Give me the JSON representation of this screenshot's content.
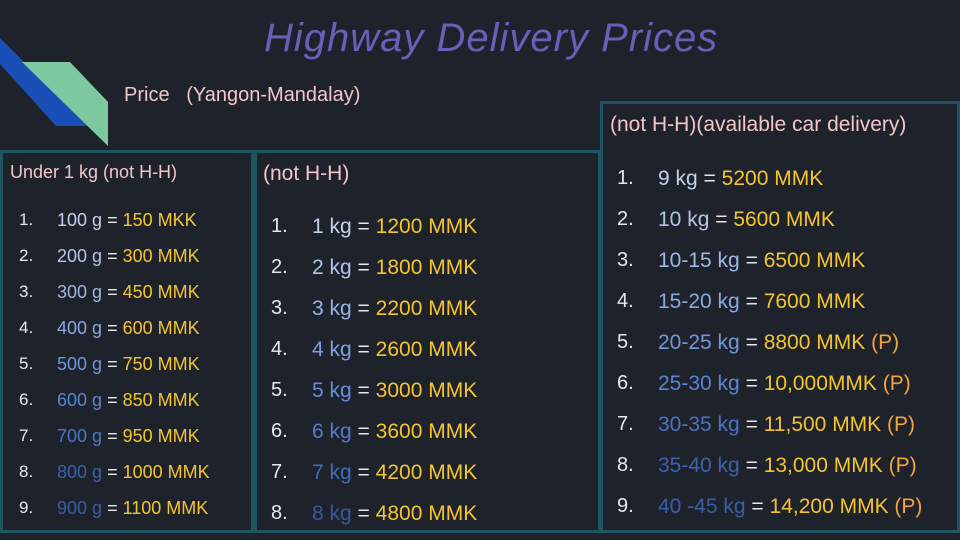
{
  "title": "Highway Delivery Prices",
  "subtitle": "Price   (Yangon-Mandalay)",
  "colors": {
    "background": "#1e222b",
    "title": "#6a5fb8",
    "heading_text": "#f4c6c6",
    "panel_border": "#1f5560",
    "price": "#f4c430",
    "p_marker": "#f4a43c",
    "deco_blue": "#1a4fb8",
    "deco_green": "#7ec8a0"
  },
  "panels": [
    {
      "title": "Under 1 kg (not H-H)",
      "items": [
        {
          "num": "1.",
          "weight": "100 g",
          "eq": "=",
          "price": "150 MKK",
          "weight_color": "#c4d2ec"
        },
        {
          "num": "2.",
          "weight": "200 g",
          "eq": "=",
          "price": "300 MMK",
          "weight_color": "#b4c6ea"
        },
        {
          "num": "3.",
          "weight": "300 g",
          "eq": "=",
          "price": "450 MMK",
          "weight_color": "#9fb8e6"
        },
        {
          "num": "4.",
          "weight": "400 g",
          "eq": "=",
          "price": "600 MMK",
          "weight_color": "#88a8e2"
        },
        {
          "num": "5.",
          "weight": "500 g",
          "eq": "=",
          "price": "750 MMK",
          "weight_color": "#6f96dc"
        },
        {
          "num": "6.",
          "weight": "600 g",
          "eq": "=",
          "price": "850 MMK",
          "weight_color": "#5a86d4"
        },
        {
          "num": "7.",
          "weight": "700 g",
          "eq": "=",
          "price": "950 MMK",
          "weight_color": "#4a76c8"
        },
        {
          "num": "8.",
          "weight": "800 g",
          "eq": "=",
          "price": "1000 MMK",
          "weight_color": "#3a62b0"
        },
        {
          "num": "9.",
          "weight": "900 g",
          "eq": "=",
          "price": "1100 MMK",
          "weight_color": "#3a5ea8"
        }
      ]
    },
    {
      "title": "(not H-H)",
      "items": [
        {
          "num": "1.",
          "weight": "1 kg",
          "eq": "=",
          "price": "1200 MMK",
          "weight_color": "#c4d2ec"
        },
        {
          "num": "2.",
          "weight": "2 kg",
          "eq": "=",
          "price": "1800 MMK",
          "weight_color": "#b0c4ea"
        },
        {
          "num": "3.",
          "weight": "3 kg",
          "eq": "=",
          "price": "2200 MMK",
          "weight_color": "#98b2e6"
        },
        {
          "num": "4.",
          "weight": "4 kg",
          "eq": "=",
          "price": "2600 MMK",
          "weight_color": "#7ea0e0"
        },
        {
          "num": "5.",
          "weight": "5 kg",
          "eq": "=",
          "price": "3000 MMK",
          "weight_color": "#668ed8"
        },
        {
          "num": "6.",
          "weight": "6 kg",
          "eq": "=",
          "price": "3600 MMK",
          "weight_color": "#527ccc"
        },
        {
          "num": "7.",
          "weight": "7 kg",
          "eq": "=",
          "price": "4200 MMK",
          "weight_color": "#426abc"
        },
        {
          "num": "8.",
          "weight": "8 kg",
          "eq": "=",
          "price": "4800 MMK",
          "weight_color": "#3558a0"
        }
      ]
    },
    {
      "title": "(not H-H)(available  car delivery)",
      "items": [
        {
          "num": "1.",
          "weight": "9 kg",
          "eq": "=",
          "price": "5200 MMK",
          "p": "",
          "weight_color": "#c4d2ec"
        },
        {
          "num": "2.",
          "weight": "10 kg",
          "eq": "=",
          "price": "5600 MMK",
          "p": "",
          "weight_color": "#b4c6ea"
        },
        {
          "num": "3.",
          "weight": "10-15 kg",
          "eq": "=",
          "price": "6500 MMK",
          "p": "",
          "weight_color": "#9fb8e6"
        },
        {
          "num": "4.",
          "weight": "15-20 kg",
          "eq": "=",
          "price": "7600 MMK",
          "p": "",
          "weight_color": "#88a8e2"
        },
        {
          "num": "5.",
          "weight": "20-25 kg",
          "eq": "=",
          "price": "8800 MMK",
          "p": "(P)",
          "weight_color": "#7098dc"
        },
        {
          "num": "6.",
          "weight": "25-30 kg",
          "eq": "= ",
          "price": "10,000MMK",
          "p": "(P)",
          "weight_color": "#5a86d4"
        },
        {
          "num": "7.",
          "weight": "30-35 kg",
          "eq": "=",
          "price": "11,500 MMK",
          "p": "(P)",
          "weight_color": "#4a72c4"
        },
        {
          "num": "8.",
          "weight": "35-40 kg",
          "eq": "=",
          "price": "13,000 MMK",
          "p": "(P)",
          "weight_color": "#3c62b0"
        },
        {
          "num": "9.",
          "weight": "40 -45 kg",
          "eq": "=",
          "price": "14,200 MMK",
          "p": "(P)",
          "weight_color": "#3a5ea8"
        }
      ]
    }
  ]
}
